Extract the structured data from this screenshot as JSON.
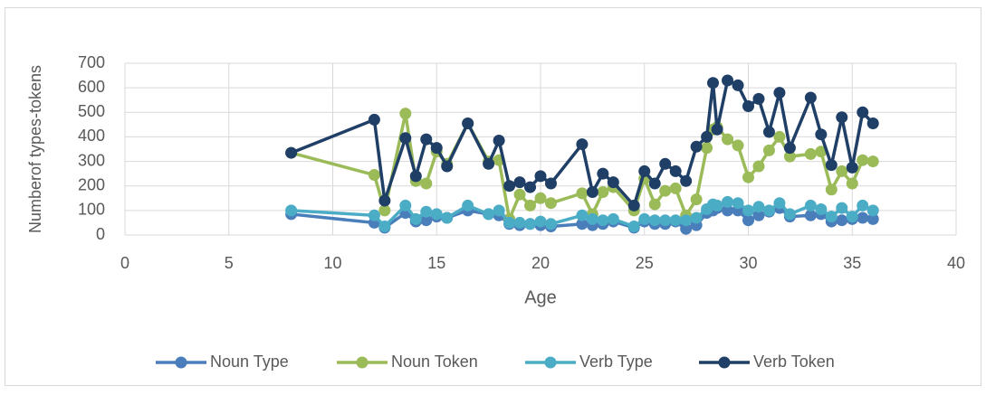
{
  "chart_data": {
    "type": "line",
    "x_label": "Age",
    "y_label": "Numberof types-tokens",
    "x": [
      8,
      12,
      12.5,
      13.5,
      14,
      14.5,
      15,
      15.5,
      16.5,
      17.5,
      18,
      18.5,
      19,
      19.5,
      20,
      20.5,
      22,
      22.5,
      23,
      23.5,
      24.5,
      25,
      25.5,
      26,
      26.5,
      27,
      27.5,
      28,
      28.3,
      28.5,
      29,
      29.5,
      30,
      30.5,
      31,
      31.5,
      32,
      33,
      33.5,
      34,
      34.5,
      35,
      35.5,
      36
    ],
    "series": [
      {
        "name": "Noun Type",
        "color": "#4a7ebb",
        "values": [
          85,
          50,
          30,
          90,
          55,
          60,
          75,
          70,
          100,
          85,
          80,
          45,
          40,
          45,
          40,
          35,
          45,
          40,
          45,
          55,
          30,
          55,
          45,
          45,
          55,
          25,
          40,
          90,
          100,
          110,
          100,
          100,
          60,
          80,
          95,
          110,
          75,
          80,
          85,
          55,
          60,
          65,
          70,
          65
        ]
      },
      {
        "name": "Noun Token",
        "color": "#9bbb59",
        "values": [
          335,
          245,
          100,
          495,
          220,
          210,
          340,
          290,
          455,
          300,
          305,
          65,
          165,
          120,
          150,
          130,
          170,
          85,
          175,
          195,
          100,
          230,
          125,
          180,
          190,
          80,
          145,
          355,
          430,
          440,
          390,
          365,
          235,
          280,
          345,
          400,
          320,
          330,
          340,
          185,
          260,
          210,
          305,
          300
        ]
      },
      {
        "name": "Verb Type",
        "color": "#4bacc6",
        "values": [
          100,
          80,
          35,
          120,
          65,
          95,
          85,
          70,
          120,
          85,
          100,
          50,
          50,
          45,
          55,
          45,
          80,
          65,
          60,
          65,
          35,
          65,
          60,
          60,
          60,
          60,
          70,
          105,
          125,
          120,
          135,
          130,
          100,
          115,
          100,
          130,
          85,
          120,
          105,
          75,
          110,
          75,
          120,
          100
        ]
      },
      {
        "name": "Verb Token",
        "color": "#1f3f66",
        "values": [
          335,
          470,
          140,
          395,
          240,
          390,
          355,
          280,
          455,
          290,
          385,
          200,
          215,
          195,
          240,
          210,
          370,
          175,
          250,
          215,
          120,
          260,
          210,
          290,
          260,
          220,
          360,
          400,
          620,
          430,
          630,
          610,
          525,
          555,
          420,
          580,
          355,
          560,
          410,
          285,
          480,
          275,
          500,
          455
        ]
      }
    ],
    "xlim": [
      0,
      40
    ],
    "xticks": [
      0,
      5,
      10,
      15,
      20,
      25,
      30,
      35,
      40
    ],
    "ylim": [
      0,
      700
    ],
    "yticks": [
      0,
      100,
      200,
      300,
      400,
      500,
      600,
      700
    ],
    "grid": true,
    "legend": "bottom"
  }
}
